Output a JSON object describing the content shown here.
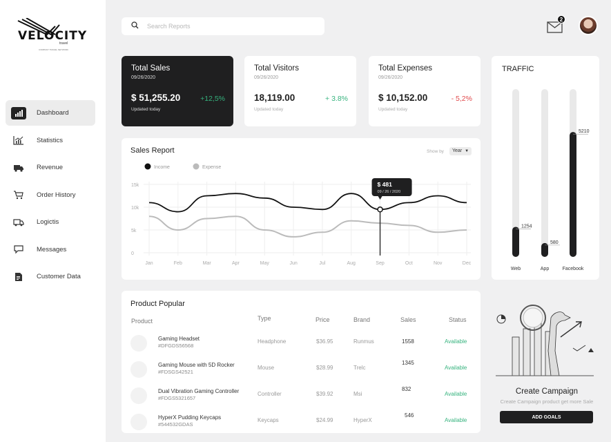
{
  "brand": {
    "name": "VELOCITY",
    "sub": "travel",
    "tagline": "COMPANY TRAVEL NETWORK"
  },
  "sidebar": {
    "items": [
      {
        "label": "Dashboard",
        "icon": "bar-chart-icon",
        "active": true
      },
      {
        "label": "Statistics",
        "icon": "line-chart-icon",
        "active": false
      },
      {
        "label": "Revenue",
        "icon": "truck-icon",
        "active": false
      },
      {
        "label": "Order History",
        "icon": "cart-icon",
        "active": false
      },
      {
        "label": "Logictis",
        "icon": "delivery-truck-icon",
        "active": false
      },
      {
        "label": "Messages",
        "icon": "chat-icon",
        "active": false
      },
      {
        "label": "Customer Data",
        "icon": "document-icon",
        "active": false
      }
    ]
  },
  "search": {
    "placeholder": "Search Reports",
    "value": ""
  },
  "header": {
    "mail_count": "2"
  },
  "stats": [
    {
      "title": "Total Sales",
      "date": "09/26/2020",
      "value": "$ 51,255.20",
      "change": "+12,5%",
      "updated": "Updated today",
      "trend": "up"
    },
    {
      "title": "Total Visitors",
      "date": "09/26/2020",
      "value": "18,119.00",
      "change": "+ 3.8%",
      "updated": "Updated today",
      "trend": "up"
    },
    {
      "title": "Total Expenses",
      "date": "09/26/2020",
      "value": "$ 10,152.00",
      "change": "- 5,2%",
      "updated": "Updated today",
      "trend": "down"
    }
  ],
  "traffic": {
    "title": "TRAFFIC",
    "bars": [
      {
        "label": "Web",
        "value": 1254,
        "value_label": "1254"
      },
      {
        "label": "App",
        "value": 580,
        "value_label": "580"
      },
      {
        "label": "Facebook",
        "value": 5210,
        "value_label": "5210"
      }
    ]
  },
  "sales_report": {
    "title": "Sales Report",
    "show_by_label": "Show by",
    "period": "Year",
    "tooltip": {
      "value": "$ 481",
      "date": "09 / 26 / 2020"
    }
  },
  "chart_data": {
    "type": "line",
    "categories": [
      "Jan",
      "Feb",
      "Mar",
      "Apr",
      "May",
      "Jun",
      "Jul",
      "Aug",
      "Sep",
      "Oct",
      "Nov",
      "Dec"
    ],
    "series": [
      {
        "name": "Income",
        "color": "#111111",
        "values": [
          11000,
          9000,
          12500,
          13000,
          12000,
          10000,
          9500,
          13000,
          9500,
          11000,
          12500,
          11000
        ]
      },
      {
        "name": "Expense",
        "color": "#bbbbbb",
        "values": [
          8000,
          5000,
          7500,
          8000,
          5000,
          3500,
          4500,
          7000,
          6500,
          6000,
          4500,
          5000
        ]
      }
    ],
    "y_ticks": [
      "15k",
      "10k",
      "5k",
      "0"
    ],
    "ylim": [
      0,
      15000
    ],
    "grid": true,
    "legend": "top-left",
    "highlight": {
      "category": "Sep",
      "value": 481
    }
  },
  "products": {
    "title": "Product Popular",
    "columns": [
      "Product",
      "Type",
      "Price",
      "Brand",
      "Sales",
      "Status"
    ],
    "rows": [
      {
        "name": "Gaming Headset",
        "id": "#DFGDS56568",
        "type": "Headphone",
        "price": "$36.95",
        "brand": "Runmus",
        "sales": "1558",
        "status": "Available"
      },
      {
        "name": "Gaming Mouse with 5D Rocker",
        "id": "#FDSGS42521",
        "type": "Mouse",
        "price": "$28.99",
        "brand": "Trelc",
        "sales": "1345",
        "status": "Available"
      },
      {
        "name": "Dual Vibration Gaming Controller",
        "id": "#FDGS5321657",
        "type": "Controller",
        "price": "$39.92",
        "brand": "Msi",
        "sales": "832",
        "status": "Available"
      },
      {
        "name": "HyperX Pudding Keycaps",
        "id": "#544532GDAS",
        "type": "Keycaps",
        "price": "$24.99",
        "brand": "HyperX",
        "sales": "546",
        "status": "Available"
      }
    ]
  },
  "campaign": {
    "title": "Create Campaign",
    "subtitle": "Create Campaign product get more Sale",
    "button": "ADD GOALS"
  }
}
